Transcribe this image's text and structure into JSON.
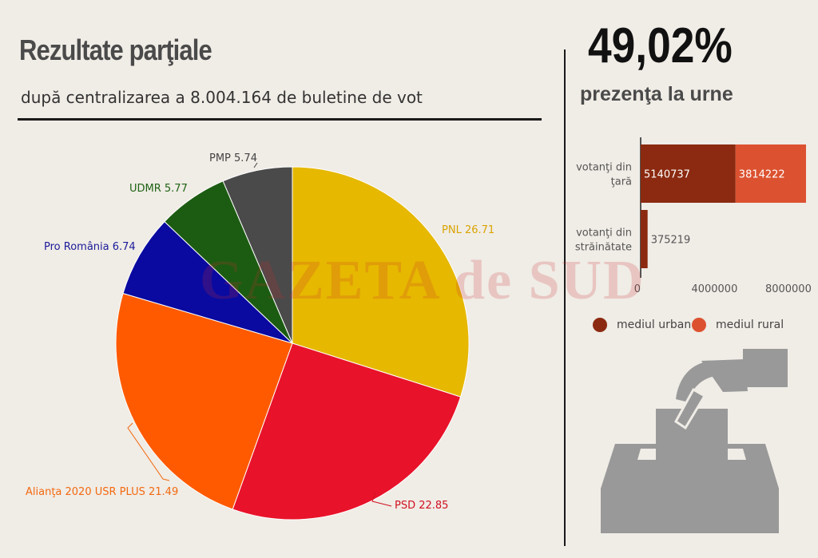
{
  "header": {
    "title": "Rezultate parţiale",
    "subtitle": "după centralizarea a 8.004.164 de buletine de vot"
  },
  "turnout": {
    "value": "49,02%",
    "label": "prezenţa la urne"
  },
  "watermark": "GAZETA de SUD",
  "colors": {
    "background": "#f0ece6",
    "urban": "#8b2a10",
    "rural": "#dc5230"
  },
  "chart_data": [
    {
      "type": "pie",
      "slices": [
        {
          "label": "PNL 26.71",
          "value": 26.71,
          "color": "#e6b800",
          "labelColor": "#d9a400"
        },
        {
          "label": "PSD 22.85",
          "value": 22.85,
          "color": "#e8132a",
          "labelColor": "#d01020"
        },
        {
          "label": "Alianţa 2020 USR PLUS 21.49",
          "value": 21.49,
          "color": "#ff5a00",
          "labelColor": "#f26a10"
        },
        {
          "label": "Pro România 6.74",
          "value": 6.74,
          "color": "#0a0aa0",
          "labelColor": "#1a1a9a"
        },
        {
          "label": "UDMR 5.77",
          "value": 5.77,
          "color": "#1c5c12",
          "labelColor": "#1e6414"
        },
        {
          "label": "PMP 5.74",
          "value": 5.74,
          "color": "#4a4a4a",
          "labelColor": "#444444"
        }
      ]
    },
    {
      "type": "bar",
      "orientation": "horizontal",
      "stacked": true,
      "categories": [
        "votanţi din ţară",
        "votanţi din străinătate"
      ],
      "series": [
        {
          "name": "mediul urban",
          "values": [
            5140737,
            375219
          ]
        },
        {
          "name": "mediul rural",
          "values": [
            3814222,
            0
          ]
        }
      ],
      "xticks": [
        "0",
        "4000000",
        "8000000"
      ],
      "xlim": [
        0,
        9000000
      ],
      "legend_position": "bottom"
    }
  ]
}
